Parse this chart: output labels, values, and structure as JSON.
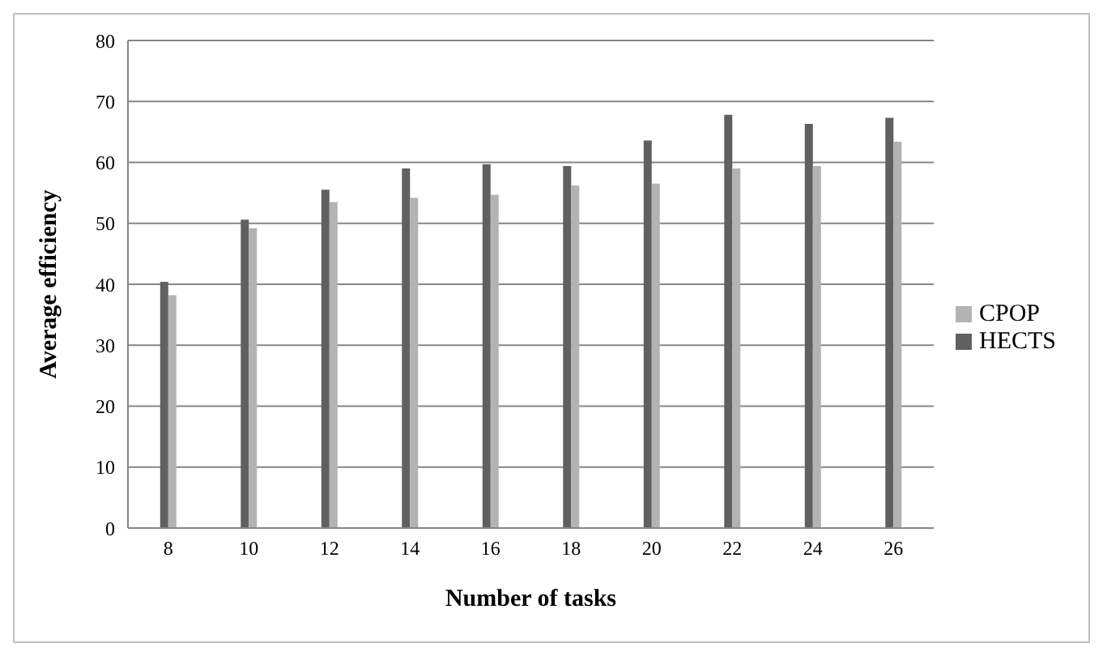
{
  "chart_data": {
    "type": "bar",
    "xlabel": "Number of tasks",
    "ylabel": "Average efficiency",
    "categories": [
      "8",
      "10",
      "12",
      "14",
      "16",
      "18",
      "20",
      "22",
      "24",
      "26"
    ],
    "series": [
      {
        "name": "HECTS",
        "color": "#606060",
        "values": [
          40.4,
          50.6,
          55.5,
          59,
          59.7,
          59.4,
          63.6,
          67.8,
          66.3,
          67.3
        ]
      },
      {
        "name": "CPOP",
        "color": "#b3b3b3",
        "values": [
          38.2,
          49.2,
          53.5,
          54.2,
          54.7,
          56.2,
          56.5,
          59,
          59.4,
          63.4
        ]
      }
    ],
    "ylim": [
      0,
      80
    ],
    "yticks": [
      0,
      10,
      20,
      30,
      40,
      50,
      60,
      70,
      80
    ],
    "grid": "y",
    "legend": "right"
  }
}
